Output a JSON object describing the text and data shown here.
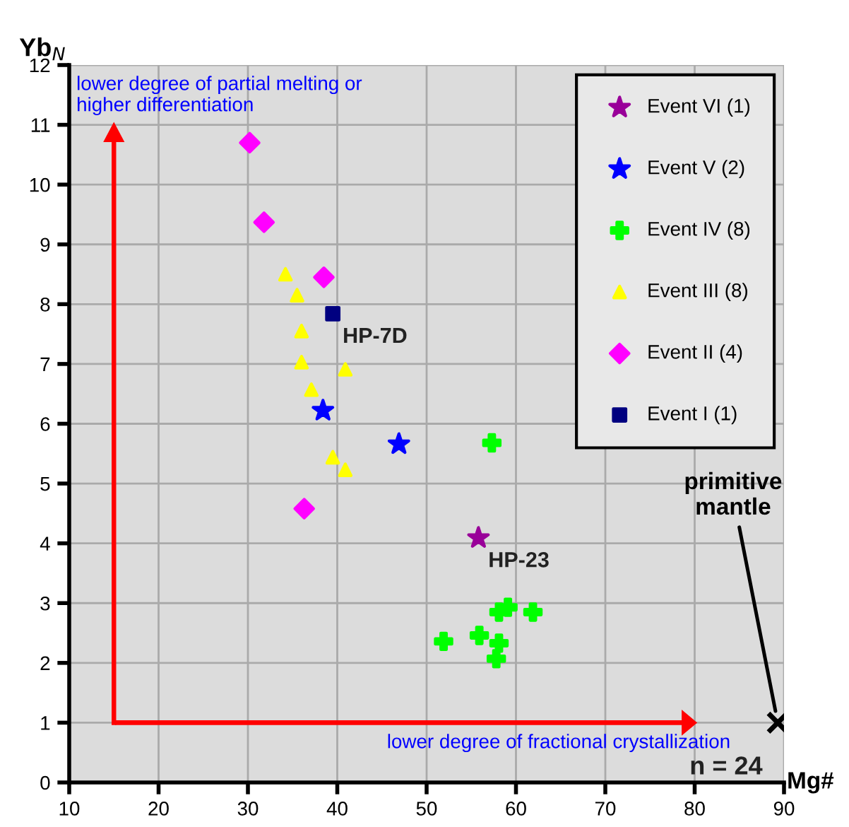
{
  "chart_data": {
    "type": "scatter",
    "xlabel": "Mg#",
    "ylabel": "Yb$_{N}$",
    "xlim": [
      10,
      90
    ],
    "xticks": [
      10,
      20,
      30,
      40,
      50,
      60,
      70,
      80,
      90
    ],
    "ylim": [
      0,
      12
    ],
    "yticks": [
      0,
      1,
      2,
      3,
      4,
      5,
      6,
      7,
      8,
      9,
      10,
      11,
      12
    ],
    "grid": true,
    "legend": "top right",
    "series": [
      {
        "name": "Event VI (1)",
        "color": "#990099",
        "marker": "star",
        "x": [
          55.8
        ],
        "values": [
          4.09
        ]
      },
      {
        "name": "Event V (2)",
        "color": "#0000ff",
        "marker": "star",
        "x": [
          38.4,
          46.9
        ],
        "values": [
          6.22,
          5.66
        ]
      },
      {
        "name": "Event IV (8)",
        "color": "#00ff00",
        "marker": "cross",
        "x": [
          57.3,
          58.1,
          59.1,
          61.9,
          51.9,
          55.9,
          58.1,
          57.8
        ],
        "values": [
          5.68,
          2.85,
          2.93,
          2.85,
          2.36,
          2.46,
          2.33,
          2.07
        ]
      },
      {
        "name": "Event III (8)",
        "color": "#ffff00",
        "marker": "triangle",
        "x": [
          34.2,
          35.5,
          36.0,
          36.0,
          40.9,
          37.1,
          39.5,
          40.9
        ],
        "values": [
          8.5,
          8.15,
          7.55,
          7.03,
          6.91,
          6.57,
          5.44,
          5.23
        ]
      },
      {
        "name": "Event II (4)",
        "color": "#ff00ff",
        "marker": "diamond",
        "x": [
          30.2,
          31.8,
          38.5,
          36.3
        ],
        "values": [
          10.7,
          9.37,
          8.45,
          4.58
        ]
      },
      {
        "name": "Event I (1)",
        "color": "#000080",
        "marker": "square",
        "x": [
          39.5
        ],
        "values": [
          7.84
        ]
      },
      {
        "color": "#000000",
        "marker": "cross",
        "x": [
          89.3
        ],
        "values": [
          1.0
        ]
      }
    ],
    "annotations": [
      {
        "text": "HP-7D",
        "x": 39.5,
        "y": 7.84
      },
      {
        "text": "HP-23",
        "x": 55.8,
        "y": 4.09
      },
      {
        "text": "primitive\nmantle",
        "x": 89.3,
        "y": 1.0
      },
      "lower degree of partial melting or\nhigher differentiation",
      "lower degree of fractional crystallization",
      "n = 24"
    ]
  }
}
